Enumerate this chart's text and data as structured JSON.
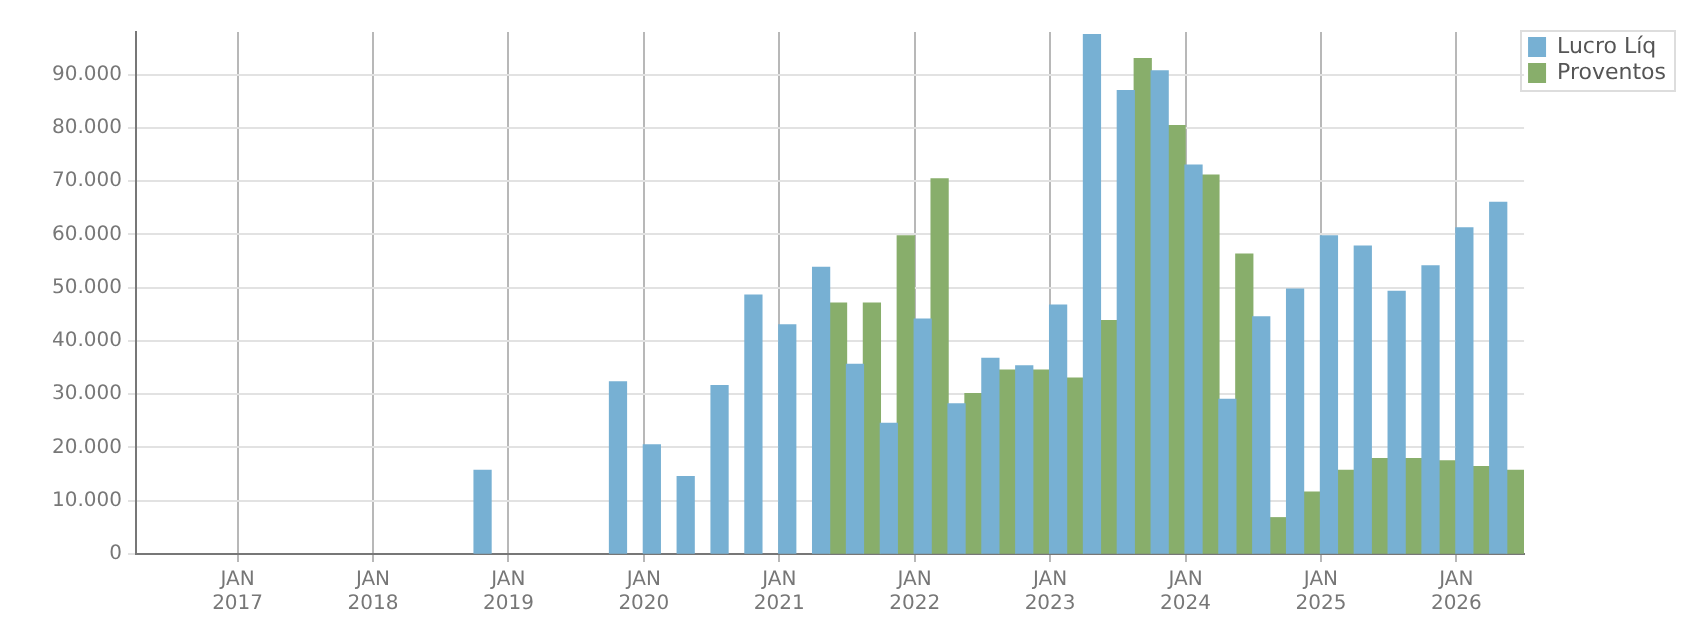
{
  "chart_data": {
    "type": "bar",
    "x": [
      "2018-11-15",
      "2019-02-15",
      "2019-05-15",
      "2019-08-15",
      "2019-11-15",
      "2020-02-15",
      "2020-05-15",
      "2020-08-15",
      "2020-11-15",
      "2021-02-15",
      "2021-05-15",
      "2021-08-15",
      "2021-11-15",
      "2022-02-15",
      "2022-05-15",
      "2022-08-15",
      "2022-11-15",
      "2023-02-15",
      "2023-05-15",
      "2023-08-15",
      "2023-11-15",
      "2024-02-15",
      "2024-05-15",
      "2024-08-15",
      "2024-11-15",
      "2025-02-15",
      "2025-05-15",
      "2025-08-15",
      "2025-11-15",
      "2026-02-15",
      "2026-05-15"
    ],
    "series": [
      {
        "name": "Lucro Líq",
        "color": "#77b0d3",
        "values": [
          15700,
          null,
          null,
          null,
          32300,
          20500,
          14500,
          31600,
          48600,
          43000,
          53800,
          35600,
          24500,
          44100,
          28200,
          36700,
          35300,
          46700,
          97500,
          87000,
          90700,
          73000,
          29000,
          44500,
          49700,
          59700,
          57800,
          49300,
          54100,
          61200,
          66000
        ]
      },
      {
        "name": "Proventos",
        "color": "#88ae6b",
        "values": [
          null,
          null,
          null,
          null,
          null,
          null,
          null,
          null,
          null,
          null,
          47100,
          47100,
          59700,
          70400,
          30100,
          34500,
          34500,
          33000,
          43800,
          93000,
          80400,
          71100,
          56300,
          6800,
          11600,
          15700,
          17900,
          17900,
          17500,
          16400,
          15700
        ]
      }
    ],
    "xlim": [
      "2016-04",
      "2026-07"
    ],
    "xticks": [
      {
        "value": "2017-01",
        "label": "JAN 2017"
      },
      {
        "value": "2018-01",
        "label": "JAN 2018"
      },
      {
        "value": "2019-01",
        "label": "JAN 2019"
      },
      {
        "value": "2020-01",
        "label": "JAN 2020"
      },
      {
        "value": "2021-01",
        "label": "JAN 2021"
      },
      {
        "value": "2022-01",
        "label": "JAN 2022"
      },
      {
        "value": "2023-01",
        "label": "JAN 2023"
      },
      {
        "value": "2024-01",
        "label": "JAN 2024"
      },
      {
        "value": "2025-01",
        "label": "JAN 2025"
      },
      {
        "value": "2026-01",
        "label": "JAN 2026"
      }
    ],
    "ylim": [
      0,
      98000
    ],
    "yticks": [
      0,
      {
        "value": 10000,
        "label": "10.000"
      },
      {
        "value": 20000,
        "label": "20.000"
      },
      {
        "value": 30000,
        "label": "30.000"
      },
      {
        "value": 40000,
        "label": "40.000"
      },
      {
        "value": 50000,
        "label": "50.000"
      },
      {
        "value": 60000,
        "label": "60.000"
      },
      {
        "value": 70000,
        "label": "70.000"
      },
      {
        "value": 80000,
        "label": "80.000"
      },
      {
        "value": 90000,
        "label": "90.000"
      }
    ],
    "grid": true,
    "legend": "top right"
  }
}
